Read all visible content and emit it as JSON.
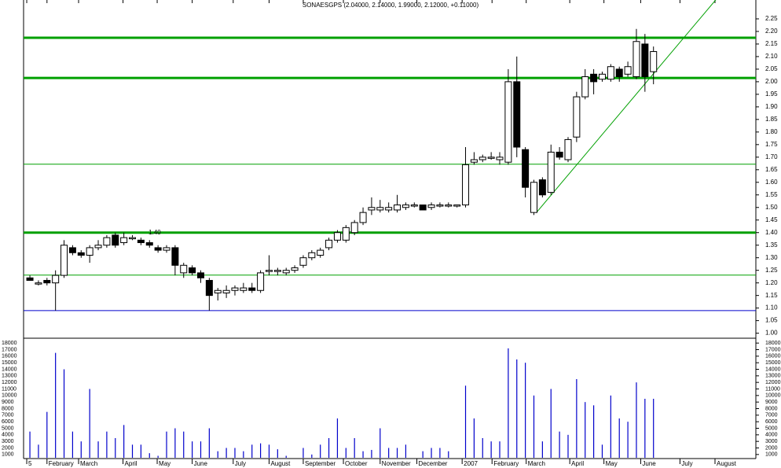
{
  "chart_data": {
    "type": "candlestick",
    "title": "SONAESGPS (2.04000, 2.14000, 1.99000, 2.12000, +0.11000)",
    "xlim": [
      -3.5,
      84.8
    ],
    "xticks": [
      {
        "value": -0.37,
        "label": "5"
      },
      {
        "value": 2.0,
        "label": "February"
      },
      {
        "value": 5.7,
        "label": "March"
      },
      {
        "value": 10.9,
        "label": "April"
      },
      {
        "value": 14.9,
        "label": "May"
      },
      {
        "value": 19.0,
        "label": "June"
      },
      {
        "value": 23.8,
        "label": "July"
      },
      {
        "value": 28.0,
        "label": "August"
      },
      {
        "value": 32.0,
        "label": "September"
      },
      {
        "value": 36.7,
        "label": "October"
      },
      {
        "value": 41.0,
        "label": "November"
      },
      {
        "value": 45.3,
        "label": "December"
      },
      {
        "value": 50.6,
        "label": "2007"
      },
      {
        "value": 54.1,
        "label": "February"
      },
      {
        "value": 58.1,
        "label": "March"
      },
      {
        "value": 63.2,
        "label": "April"
      },
      {
        "value": 67.2,
        "label": "May"
      },
      {
        "value": 71.5,
        "label": "June"
      },
      {
        "value": 76.1,
        "label": "July"
      },
      {
        "value": 80.2,
        "label": "August"
      }
    ],
    "ylim": [
      0.98,
      2.325
    ],
    "yticks": [
      {
        "value": 1.0,
        "label": "1.00"
      },
      {
        "value": 1.05,
        "label": "1.05"
      },
      {
        "value": 1.1,
        "label": "1.10"
      },
      {
        "value": 1.15,
        "label": "1.15"
      },
      {
        "value": 1.2,
        "label": "1.20"
      },
      {
        "value": 1.25,
        "label": "1.25"
      },
      {
        "value": 1.3,
        "label": "1.30"
      },
      {
        "value": 1.35,
        "label": "1.35"
      },
      {
        "value": 1.4,
        "label": "1.40"
      },
      {
        "value": 1.45,
        "label": "1.45"
      },
      {
        "value": 1.5,
        "label": "1.50"
      },
      {
        "value": 1.55,
        "label": "1.55"
      },
      {
        "value": 1.6,
        "label": "1.60"
      },
      {
        "value": 1.65,
        "label": "1.65"
      },
      {
        "value": 1.7,
        "label": "1.70"
      },
      {
        "value": 1.75,
        "label": "1.75"
      },
      {
        "value": 1.8,
        "label": "1.80"
      },
      {
        "value": 1.85,
        "label": "1.85"
      },
      {
        "value": 1.9,
        "label": "1.90"
      },
      {
        "value": 1.95,
        "label": "1.95"
      },
      {
        "value": 2.0,
        "label": "2.00"
      },
      {
        "value": 2.05,
        "label": "2.05"
      },
      {
        "value": 2.1,
        "label": "2.10"
      },
      {
        "value": 2.15,
        "label": "2.15"
      },
      {
        "value": 2.2,
        "label": "2.20"
      },
      {
        "value": 2.25,
        "label": "2.25"
      }
    ],
    "open": [
      1.22,
      1.2,
      1.21,
      1.2,
      1.23,
      1.34,
      1.32,
      1.31,
      1.34,
      1.35,
      1.39,
      1.36,
      1.38,
      1.37,
      1.36,
      1.34,
      1.33,
      1.34,
      1.24,
      1.26,
      1.24,
      1.21,
      1.16,
      1.16,
      1.17,
      1.17,
      1.18,
      1.17,
      1.25,
      1.25,
      1.24,
      1.25,
      1.27,
      1.3,
      1.31,
      1.34,
      1.37,
      1.37,
      1.4,
      1.44,
      1.49,
      1.49,
      1.49,
      1.49,
      1.5,
      1.51,
      1.51,
      1.5,
      1.51,
      1.51,
      1.51,
      1.51,
      1.68,
      1.69,
      1.7,
      1.69,
      1.68,
      2.0,
      1.73,
      1.48,
      1.61,
      1.56,
      1.72,
      1.69,
      1.78,
      1.94,
      2.03,
      2.01,
      2.01,
      2.05,
      2.03,
      2.02,
      2.15,
      2.04
    ],
    "high": [
      1.23,
      1.21,
      1.22,
      1.25,
      1.37,
      1.35,
      1.33,
      1.35,
      1.37,
      1.39,
      1.4,
      1.4,
      1.39,
      1.38,
      1.37,
      1.35,
      1.35,
      1.35,
      1.28,
      1.27,
      1.25,
      1.22,
      1.18,
      1.19,
      1.19,
      1.2,
      1.2,
      1.25,
      1.31,
      1.26,
      1.26,
      1.27,
      1.31,
      1.33,
      1.34,
      1.38,
      1.41,
      1.43,
      1.45,
      1.5,
      1.54,
      1.53,
      1.52,
      1.55,
      1.52,
      1.52,
      1.51,
      1.52,
      1.52,
      1.52,
      1.51,
      1.74,
      1.72,
      1.71,
      1.72,
      1.72,
      2.05,
      2.1,
      1.74,
      1.61,
      1.62,
      1.75,
      1.74,
      1.78,
      1.96,
      2.05,
      2.05,
      2.04,
      2.07,
      2.06,
      2.08,
      2.21,
      2.19,
      2.14
    ],
    "low": [
      1.21,
      1.19,
      1.19,
      1.09,
      1.22,
      1.31,
      1.3,
      1.28,
      1.33,
      1.34,
      1.34,
      1.35,
      1.37,
      1.35,
      1.34,
      1.32,
      1.32,
      1.23,
      1.22,
      1.23,
      1.2,
      1.09,
      1.13,
      1.14,
      1.15,
      1.16,
      1.16,
      1.16,
      1.23,
      1.23,
      1.23,
      1.24,
      1.26,
      1.29,
      1.3,
      1.33,
      1.36,
      1.36,
      1.39,
      1.43,
      1.47,
      1.48,
      1.48,
      1.48,
      1.49,
      1.5,
      1.49,
      1.49,
      1.5,
      1.5,
      1.5,
      1.5,
      1.67,
      1.68,
      1.69,
      1.67,
      1.67,
      1.7,
      1.54,
      1.47,
      1.54,
      1.55,
      1.69,
      1.68,
      1.76,
      1.93,
      1.95,
      2.0,
      2.0,
      2.0,
      2.02,
      2.01,
      1.96,
      1.99
    ],
    "close": [
      1.21,
      1.2,
      1.2,
      1.23,
      1.35,
      1.32,
      1.31,
      1.34,
      1.35,
      1.38,
      1.35,
      1.38,
      1.38,
      1.36,
      1.35,
      1.33,
      1.34,
      1.27,
      1.27,
      1.24,
      1.22,
      1.15,
      1.17,
      1.17,
      1.18,
      1.18,
      1.17,
      1.24,
      1.25,
      1.25,
      1.25,
      1.26,
      1.3,
      1.32,
      1.33,
      1.37,
      1.4,
      1.42,
      1.44,
      1.48,
      1.5,
      1.5,
      1.5,
      1.51,
      1.51,
      1.51,
      1.49,
      1.51,
      1.51,
      1.51,
      1.51,
      1.67,
      1.69,
      1.7,
      1.7,
      1.7,
      2.0,
      1.74,
      1.58,
      1.6,
      1.55,
      1.72,
      1.7,
      1.77,
      1.94,
      2.02,
      2.0,
      2.03,
      2.06,
      2.02,
      2.06,
      2.16,
      2.02,
      2.12
    ],
    "volume": {
      "color": "#0000cc",
      "ylim": [
        500,
        18500
      ],
      "yticks": [
        1000,
        2000,
        3000,
        4000,
        5000,
        6000,
        7000,
        8000,
        9000,
        10000,
        11000,
        12000,
        13000,
        14000,
        15000,
        16000,
        17000,
        18000
      ],
      "values": [
        4500,
        2500,
        7500,
        16500,
        14000,
        4500,
        3000,
        11000,
        3000,
        4500,
        3500,
        5500,
        2500,
        2500,
        1200,
        800,
        4500,
        5000,
        4500,
        3000,
        3000,
        5000,
        1500,
        2000,
        2000,
        1500,
        2500,
        2700,
        2500,
        1800,
        800,
        500,
        2000,
        1000,
        2500,
        3500,
        6500,
        2000,
        3500,
        1500,
        1700,
        5000,
        2000,
        2000,
        2500,
        500,
        1500,
        2000,
        2000,
        1500,
        500,
        11500,
        6500,
        3500,
        3000,
        3000,
        17200,
        15500,
        15000,
        10000,
        3000,
        11000,
        4500,
        4000,
        12500,
        9000,
        8500,
        2500,
        10000,
        6500,
        6000,
        12000,
        9500,
        9500
      ]
    },
    "levels": [
      {
        "value": 2.175,
        "color": "#00a000",
        "style": "thick"
      },
      {
        "value": 2.015,
        "color": "#00a000",
        "style": "thick"
      },
      {
        "value": 1.672,
        "color": "#00a000",
        "style": "thin"
      },
      {
        "value": 1.4,
        "color": "#00a000",
        "style": "thick"
      },
      {
        "value": 1.231,
        "color": "#00a000",
        "style": "thin"
      },
      {
        "value": 1.09,
        "color": "#0000cc",
        "style": "thin"
      }
    ],
    "trend_line": {
      "x": [
        59.3,
        80.4
      ],
      "y": [
        1.48,
        2.33
      ],
      "color": "#00a000"
    },
    "annotation": {
      "text": "1.40",
      "x": 13.9,
      "y": 1.4,
      "color": "#0000cc"
    }
  }
}
